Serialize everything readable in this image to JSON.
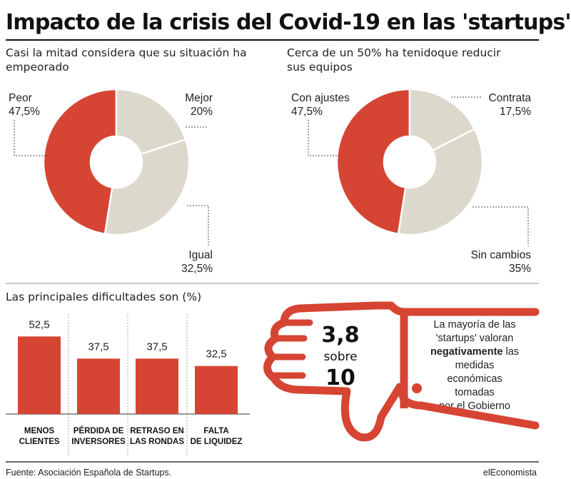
{
  "title": "Impacto de la crisis del Covid-19 en las 'startups'",
  "chart_data": [
    {
      "type": "pie",
      "title": "Casi la mitad considera que su situación ha empeorado",
      "slices": [
        {
          "label": "Peor",
          "value": 47.5,
          "display": "47,5%",
          "color": "#d64533"
        },
        {
          "label": "Mejor",
          "value": 20,
          "display": "20%",
          "color": "#dcd8cc"
        },
        {
          "label": "Igual",
          "value": 32.5,
          "display": "32,5%",
          "color": "#dcd8cc"
        }
      ]
    },
    {
      "type": "pie",
      "title": "Cerca de un 50% ha tenidoque reducir sus equipos",
      "slices": [
        {
          "label": "Con ajustes",
          "value": 47.5,
          "display": "47,5%",
          "color": "#d64533"
        },
        {
          "label": "Contrata",
          "value": 17.5,
          "display": "17,5%",
          "color": "#dcd8cc"
        },
        {
          "label": "Sin cambios",
          "value": 35,
          "display": "35%",
          "color": "#dcd8cc"
        }
      ]
    },
    {
      "type": "bar",
      "title": "Las principales dificultades son (%)",
      "categories": [
        "MENOS CLIENTES",
        "PÉRDIDA DE INVERSORES",
        "RETRASO EN LAS RONDAS",
        "FALTA DE LIQUIDEZ"
      ],
      "category_lines": [
        [
          "MENOS",
          "CLIENTES"
        ],
        [
          "PÉRDIDA DE",
          "INVERSORES"
        ],
        [
          "RETRASO EN",
          "LAS RONDAS"
        ],
        [
          "FALTA",
          "DE LIQUIDEZ"
        ]
      ],
      "values": [
        52.5,
        37.5,
        37.5,
        32.5
      ],
      "value_labels": [
        "52,5",
        "37,5",
        "37,5",
        "32,5"
      ],
      "color": "#d64533"
    }
  ],
  "rating": {
    "score": "3,8",
    "sobre": "sobre",
    "max": "10",
    "text_before": "La mayoría de las 'startups' valoran",
    "text_bold": "negativamente",
    "text_after": "las medidas económicas tomadas por el Gobierno",
    "lines": [
      "La mayoría de las",
      "'startups' valoran"
    ],
    "line3_rest": " las",
    "lines_after": [
      "medidas",
      "económicas",
      "tomadas",
      "por el Gobierno"
    ],
    "accent": "#d64533"
  },
  "footer": {
    "source": "Fuente: Asociación Española de Startups.",
    "brand": "elEconomista"
  }
}
